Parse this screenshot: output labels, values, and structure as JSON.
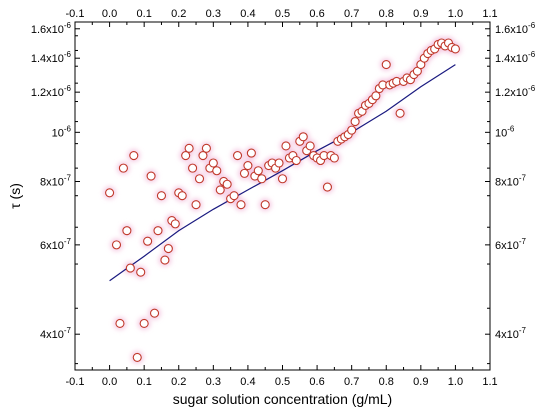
{
  "chart_data": {
    "type": "scatter",
    "title": "",
    "xlabel": "sugar solution concentration (g/mL)",
    "ylabel": "τ (s)",
    "xlim": [
      -0.1,
      1.1
    ],
    "ylim": [
      3.4e-07,
      1.65e-06
    ],
    "y_scale": "log",
    "grid": false,
    "legend": "none",
    "x_ticks": [
      -0.1,
      0.0,
      0.1,
      0.2,
      0.3,
      0.4,
      0.5,
      0.6,
      0.7,
      0.8,
      0.9,
      1.0,
      1.1
    ],
    "x_tick_labels": [
      "-0.1",
      "0.0",
      "0.1",
      "0.2",
      "0.3",
      "0.4",
      "0.5",
      "0.6",
      "0.7",
      "0.8",
      "0.9",
      "1.0",
      "1.1"
    ],
    "y_ticks": [
      4e-07,
      6e-07,
      8e-07,
      1e-06,
      1.2e-06,
      1.4e-06,
      1.6e-06
    ],
    "y_tick_labels": [
      {
        "mantissa": "4x10",
        "exp": "-7"
      },
      {
        "mantissa": "6x10",
        "exp": "-7"
      },
      {
        "mantissa": "8x10",
        "exp": "-7"
      },
      {
        "mantissa": "10",
        "exp": "-6"
      },
      {
        "mantissa": "1.2x10",
        "exp": "-6"
      },
      {
        "mantissa": "1.4x10",
        "exp": "-6"
      },
      {
        "mantissa": "1.6x10",
        "exp": "-6"
      }
    ],
    "marker_color": "#c0392b",
    "glow_color": "#f4c6e0",
    "fit_color": "#1a1a80",
    "series": [
      {
        "kind": "points",
        "x": [
          0.0,
          0.02,
          0.03,
          0.04,
          0.05,
          0.06,
          0.07,
          0.08,
          0.09,
          0.1,
          0.11,
          0.12,
          0.13,
          0.14,
          0.15,
          0.16,
          0.17,
          0.18,
          0.19,
          0.2,
          0.21,
          0.22,
          0.23,
          0.24,
          0.25,
          0.26,
          0.27,
          0.28,
          0.29,
          0.3,
          0.31,
          0.32,
          0.33,
          0.34,
          0.35,
          0.36,
          0.37,
          0.38,
          0.39,
          0.4,
          0.41,
          0.42,
          0.43,
          0.44,
          0.45,
          0.46,
          0.47,
          0.48,
          0.49,
          0.5,
          0.51,
          0.52,
          0.53,
          0.54,
          0.55,
          0.56,
          0.57,
          0.58,
          0.59,
          0.6,
          0.61,
          0.62,
          0.63,
          0.64,
          0.65,
          0.66,
          0.67,
          0.68,
          0.69,
          0.7,
          0.71,
          0.72,
          0.73,
          0.74,
          0.75,
          0.76,
          0.77,
          0.78,
          0.79,
          0.8,
          0.81,
          0.82,
          0.83,
          0.84,
          0.85,
          0.86,
          0.87,
          0.88,
          0.89,
          0.9,
          0.91,
          0.92,
          0.93,
          0.94,
          0.95,
          0.96,
          0.97,
          0.98,
          0.99,
          1.0
        ],
        "y": [
          7.6e-07,
          6e-07,
          4.2e-07,
          8.5e-07,
          6.4e-07,
          5.4e-07,
          9e-07,
          3.6e-07,
          5.3e-07,
          4.2e-07,
          6.1e-07,
          8.2e-07,
          4.4e-07,
          6.4e-07,
          7.5e-07,
          5.6e-07,
          5.9e-07,
          6.7e-07,
          6.6e-07,
          7.6e-07,
          7.5e-07,
          9e-07,
          9.3e-07,
          8.5e-07,
          7.2e-07,
          8.1e-07,
          9e-07,
          9.3e-07,
          8.5e-07,
          8.7e-07,
          8.4e-07,
          7.7e-07,
          8e-07,
          7.9e-07,
          7.4e-07,
          7.5e-07,
          9e-07,
          7.2e-07,
          8.3e-07,
          8.6e-07,
          9.1e-07,
          8.2e-07,
          8.4e-07,
          8.1e-07,
          7.2e-07,
          8.6e-07,
          8.7e-07,
          8.5e-07,
          8.7e-07,
          8.1e-07,
          9.4e-07,
          8.9e-07,
          9e-07,
          8.8e-07,
          9.6e-07,
          9.8e-07,
          9.2e-07,
          9.4e-07,
          9e-07,
          8.9e-07,
          8.8e-07,
          9e-07,
          7.8e-07,
          9e-07,
          8.9e-07,
          9.6e-07,
          9.7e-07,
          9.8e-07,
          9.9e-07,
          1.01e-06,
          1.05e-06,
          1.09e-06,
          1.1e-06,
          1.13e-06,
          1.14e-06,
          1.16e-06,
          1.18e-06,
          1.22e-06,
          1.24e-06,
          1.36e-06,
          1.24e-06,
          1.25e-06,
          1.26e-06,
          1.09e-06,
          1.26e-06,
          1.28e-06,
          1.27e-06,
          1.3e-06,
          1.32e-06,
          1.36e-06,
          1.4e-06,
          1.43e-06,
          1.45e-06,
          1.46e-06,
          1.49e-06,
          1.5e-06,
          1.48e-06,
          1.5e-06,
          1.47e-06,
          1.46e-06
        ]
      },
      {
        "kind": "fit",
        "x": [
          0.0,
          0.1,
          0.2,
          0.3,
          0.4,
          0.5,
          0.6,
          0.7,
          0.8,
          0.9,
          1.0
        ],
        "y": [
          5.1e-07,
          5.7e-07,
          6.4e-07,
          7.05e-07,
          7.7e-07,
          8.4e-07,
          9.2e-07,
          1e-06,
          1.1e-06,
          1.23e-06,
          1.36e-06
        ]
      }
    ]
  }
}
